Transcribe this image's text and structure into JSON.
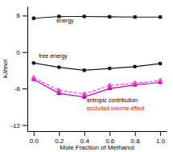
{
  "chart_data": {
    "type": "line",
    "xlabel": "Mole Fraction of Methanol",
    "ylabel": "kJ/mol",
    "x": [
      0.0,
      0.2,
      0.4,
      0.6,
      0.8,
      1.0
    ],
    "series": [
      {
        "color": "#1a1a1a",
        "marker": "square",
        "line_style": "solid",
        "values": [
          5.55,
          5.85,
          5.85,
          5.8,
          5.75,
          5.75
        ],
        "error": [
          0.08,
          0.05,
          0.05,
          0.05,
          0.05,
          0.05
        ]
      },
      {
        "color": "#1a1a1a",
        "marker": "circle",
        "line_style": "solid",
        "values": [
          -1.8,
          -2.5,
          -3.0,
          -2.7,
          -2.4,
          -1.9
        ],
        "error": [
          0.12,
          0.1,
          0.15,
          0.1,
          0.1,
          0.1
        ]
      },
      {
        "color": "#cc00cc",
        "marker": "triangle",
        "line_style": "solid",
        "values": [
          -4.5,
          -6.8,
          -7.4,
          -6.0,
          -5.4,
          -5.0
        ],
        "error": [
          0.18,
          0.18,
          0.22,
          0.18,
          0.18,
          0.18
        ]
      },
      {
        "color": "#ff44bb",
        "marker": "triangle",
        "line_style": "dashed",
        "values": [
          -4.2,
          -6.3,
          -6.9,
          -5.5,
          -5.1,
          -4.7
        ],
        "error": [
          0.18,
          0.18,
          0.22,
          0.18,
          0.18,
          0.18
        ]
      }
    ],
    "annotations": [
      {
        "text": "energy",
        "x": 0.18,
        "y": 4.9
      },
      {
        "text": "free energy",
        "x": 0.04,
        "y": -1.0
      },
      {
        "text": "entropic contribution",
        "x": 0.42,
        "y": -8.3
      },
      {
        "text": "excluded volume effect",
        "x": 0.42,
        "y": -9.5,
        "color": "red"
      }
    ],
    "xlim": [
      -0.05,
      1.05
    ],
    "xticks": [
      {
        "value": 0.0,
        "label": "0.0"
      },
      0.2,
      0.4,
      0.6,
      0.8,
      {
        "value": 1.0,
        "label": "1.0"
      }
    ],
    "ylim": [
      -13.0,
      7.5
    ],
    "yticks": [
      -12.0,
      -6.0,
      0.0,
      6.0
    ],
    "grid": false
  }
}
